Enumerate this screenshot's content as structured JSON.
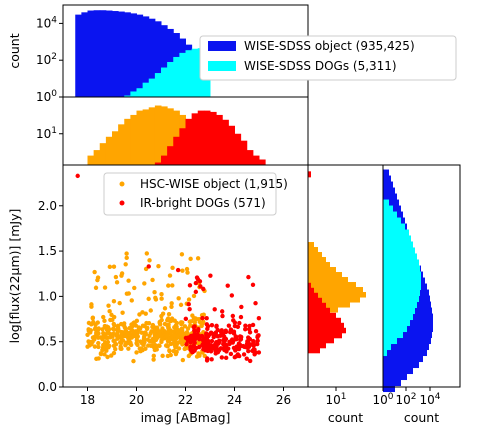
{
  "chart_data": [
    {
      "type": "histogram",
      "panel": "top-imag-wise",
      "ylabel": "count",
      "yscale": "log",
      "ylim": [
        1,
        100000
      ],
      "ytick_labels": [
        "10^0",
        "10^2",
        "10^4"
      ],
      "xlim": [
        17,
        27
      ],
      "bins": [
        17.5,
        17.75,
        18,
        18.25,
        18.5,
        18.75,
        19,
        19.25,
        19.5,
        19.75,
        20,
        20.25,
        20.5,
        20.75,
        21,
        21.25,
        21.5,
        21.75,
        22,
        22.25,
        22.5,
        22.75,
        23
      ],
      "series": [
        {
          "name": "WISE-SDSS object (935,425)",
          "color": "#0a14f0",
          "values": [
            30000,
            40000,
            50000,
            52000,
            52000,
            50000,
            47000,
            44000,
            40000,
            35000,
            30000,
            24000,
            18000,
            13000,
            8000,
            5000,
            3000,
            1500,
            700,
            250,
            80,
            20
          ]
        },
        {
          "name": "WISE-SDSS DOGs (5,311)",
          "color": "#00ffff",
          "values": [
            1,
            1,
            1,
            1,
            1,
            1,
            1,
            1,
            1.2,
            2,
            3,
            6,
            10,
            20,
            40,
            80,
            150,
            250,
            350,
            420,
            450,
            400
          ]
        }
      ],
      "legend": "right"
    },
    {
      "type": "histogram",
      "panel": "middle-imag-hsc",
      "yscale": "log",
      "ylim": [
        1,
        150
      ],
      "ytick_labels": [
        "10^1"
      ],
      "xlim": [
        17,
        27
      ],
      "bins": [
        18,
        18.25,
        18.5,
        18.75,
        19,
        19.25,
        19.5,
        19.75,
        20,
        20.25,
        20.5,
        20.75,
        21,
        21.25,
        21.5,
        21.75,
        22,
        22.25,
        22.5,
        22.75,
        23,
        23.25,
        23.5,
        23.75,
        24,
        24.25,
        24.5,
        24.75,
        25,
        25.25
      ],
      "series": [
        {
          "name": "HSC-WISE object (1,915)",
          "color": "#ffa500",
          "values": [
            2,
            3,
            5,
            8,
            12,
            20,
            30,
            40,
            55,
            60,
            70,
            80,
            75,
            65,
            55,
            40,
            25,
            14,
            8,
            5,
            3,
            2,
            1.5,
            1,
            1,
            1,
            1,
            1,
            1
          ]
        },
        {
          "name": "IR-bright DOGs (571)",
          "color": "#ff0000",
          "values": [
            1,
            1,
            1,
            1,
            1,
            1,
            1,
            1,
            1,
            1,
            1,
            1.2,
            2,
            4,
            8,
            15,
            30,
            45,
            55,
            55,
            50,
            40,
            28,
            18,
            10,
            6,
            3,
            2,
            1.5
          ]
        }
      ]
    },
    {
      "type": "scatter",
      "panel": "main",
      "xlabel": "imag [ABmag]",
      "ylabel": "log[flux(22μm)] [mJy]",
      "xlim": [
        17,
        27
      ],
      "ylim": [
        0,
        2.45
      ],
      "xticks": [
        18,
        20,
        22,
        24,
        26
      ],
      "yticks": [
        0.0,
        0.5,
        1.0,
        1.5,
        2.0
      ],
      "series": [
        {
          "name": "HSC-WISE object (1,915)",
          "color": "#ffa500",
          "cloud": {
            "x_range": [
              18.0,
              22.8
            ],
            "y_range": [
              0.25,
              1.5
            ],
            "core_y": [
              0.35,
              0.75
            ]
          }
        },
        {
          "name": "IR-bright DOGs (571)",
          "color": "#ff0000",
          "cloud": {
            "x_range": [
              21.0,
              25.0
            ],
            "y_range": [
              0.25,
              1.25
            ],
            "core_y": [
              0.3,
              0.7
            ]
          },
          "outliers": [
            {
              "x": 17.6,
              "y": 2.33
            },
            {
              "x": 20.5,
              "y": 1.33
            },
            {
              "x": 21.7,
              "y": 1.29
            }
          ]
        }
      ],
      "legend": "top-center"
    },
    {
      "type": "histogram",
      "orientation": "horizontal",
      "panel": "right-flux-hsc",
      "xlabel": "count",
      "xscale": "log",
      "xtick_labels": [
        "10^1"
      ],
      "series": [
        {
          "name": "HSC-WISE object (1,915)",
          "color": "#ffa500"
        },
        {
          "name": "IR-bright DOGs (571)",
          "color": "#ff0000"
        }
      ]
    },
    {
      "type": "histogram",
      "orientation": "horizontal",
      "panel": "right-flux-wise",
      "xlabel": "count",
      "xscale": "log",
      "xtick_labels": [
        "10^0",
        "10^2",
        "10^4"
      ],
      "series": [
        {
          "name": "WISE-SDSS object (935,425)",
          "color": "#0a14f0"
        },
        {
          "name": "WISE-SDSS DOGs (5,311)",
          "color": "#00ffff"
        }
      ]
    }
  ]
}
